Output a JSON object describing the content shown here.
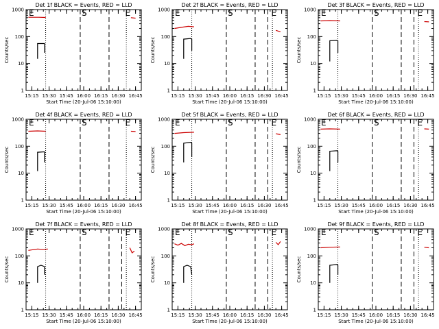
{
  "chart_data": [
    {
      "type": "line",
      "title": "Det 1f BLACK = Events, RED = LLD",
      "ylabel": "Counts/sec",
      "xlabel": "Start Time (20-Jul-06 15:10:00)",
      "x_tick_labels": [
        "15:15",
        "15:30",
        "15:45",
        "16:00",
        "16:15",
        "16:30",
        "16:45"
      ],
      "y_tick_labels": [
        "1",
        "10",
        "100",
        "1000"
      ],
      "xlim": [
        "15:10",
        "16:50"
      ],
      "ylim": [
        1,
        1000
      ],
      "y_scale": "log",
      "markers": [
        "E",
        "S",
        "E"
      ],
      "series": [
        {
          "color": "#cc0000",
          "segments": [
            {
              "x": [
                "15:12",
                "15:21",
                "15:27"
              ],
              "y": [
                520,
                520,
                510
              ]
            },
            {
              "x": [
                "16:41",
                "16:45"
              ],
              "y": [
                500,
                480
              ]
            }
          ]
        },
        {
          "color": "#000000",
          "segments": [
            {
              "x": [
                "15:20",
                "15:20",
                "15:26",
                "15:26",
                "15:26"
              ],
              "y": [
                15,
                55,
                55,
                50,
                25
              ]
            }
          ]
        }
      ],
      "vlines_dotted": [
        "15:27",
        "16:37"
      ],
      "vlines_dashed": [
        "15:57",
        "16:22"
      ]
    },
    {
      "type": "line",
      "title": "Det 2f BLACK = Events, RED = LLD",
      "ylabel": "Counts/sec",
      "xlabel": "Start Time (20-Jul-06 15:10:00)",
      "x_tick_labels": [
        "15:15",
        "15:30",
        "15:45",
        "16:00",
        "16:15",
        "16:30",
        "16:45"
      ],
      "y_tick_labels": [
        "1",
        "10",
        "100",
        "1000"
      ],
      "xlim": [
        "15:10",
        "16:50"
      ],
      "ylim": [
        1,
        1000
      ],
      "y_scale": "log",
      "markers": [
        "E",
        "S",
        "E"
      ],
      "series": [
        {
          "color": "#cc0000",
          "segments": [
            {
              "x": [
                "15:12",
                "15:18",
                "15:24",
                "15:29"
              ],
              "y": [
                200,
                220,
                240,
                230
              ]
            },
            {
              "x": [
                "16:40",
                "16:44"
              ],
              "y": [
                170,
                150
              ]
            }
          ]
        },
        {
          "color": "#000000",
          "segments": [
            {
              "x": [
                "15:20",
                "15:20",
                "15:26",
                "15:27",
                "15:27"
              ],
              "y": [
                15,
                80,
                85,
                80,
                30
              ]
            }
          ]
        }
      ],
      "vlines_dotted": [
        "15:27",
        "16:37"
      ],
      "vlines_dashed": [
        "15:57",
        "16:22",
        "16:33"
      ]
    },
    {
      "type": "line",
      "title": "Det 3f BLACK = Events, RED = LLD",
      "ylabel": "Counts/sec",
      "xlabel": "Start Time (20-Jul-06 15:10:00)",
      "x_tick_labels": [
        "15:15",
        "15:30",
        "15:45",
        "16:00",
        "16:15",
        "16:30",
        "16:45"
      ],
      "y_tick_labels": [
        "1",
        "10",
        "100",
        "1000"
      ],
      "xlim": [
        "15:10",
        "16:50"
      ],
      "ylim": [
        1,
        1000
      ],
      "y_scale": "log",
      "markers": [
        "E",
        "S",
        "E"
      ],
      "series": [
        {
          "color": "#cc0000",
          "segments": [
            {
              "x": [
                "15:12",
                "15:20",
                "15:29"
              ],
              "y": [
                380,
                390,
                380
              ]
            },
            {
              "x": [
                "16:42",
                "16:46"
              ],
              "y": [
                360,
                350
              ]
            }
          ]
        },
        {
          "color": "#000000",
          "segments": [
            {
              "x": [
                "15:20",
                "15:20",
                "15:26",
                "15:27",
                "15:27"
              ],
              "y": [
                12,
                70,
                72,
                70,
                25
              ]
            }
          ]
        }
      ],
      "vlines_dotted": [
        "15:27",
        "16:37"
      ],
      "vlines_dashed": [
        "15:57",
        "16:22",
        "16:33"
      ]
    },
    {
      "type": "line",
      "title": "Det 4f BLACK = Events, RED = LLD",
      "ylabel": "Counts/sec",
      "xlabel": "Start Time (20-Jul-06 15:10:00)",
      "x_tick_labels": [
        "15:15",
        "15:30",
        "15:45",
        "16:00",
        "16:15",
        "16:30",
        "16:45"
      ],
      "y_tick_labels": [
        "1",
        "10",
        "100",
        "1000"
      ],
      "xlim": [
        "15:10",
        "16:50"
      ],
      "ylim": [
        1,
        1000
      ],
      "y_scale": "log",
      "markers": [
        "E",
        "S",
        "E"
      ],
      "series": [
        {
          "color": "#cc0000",
          "segments": [
            {
              "x": [
                "15:12",
                "15:20",
                "15:27"
              ],
              "y": [
                360,
                370,
                360
              ]
            },
            {
              "x": [
                "16:41",
                "16:45"
              ],
              "y": [
                360,
                350
              ]
            }
          ]
        },
        {
          "color": "#000000",
          "segments": [
            {
              "x": [
                "15:20",
                "15:20",
                "15:26",
                "15:26",
                "15:26"
              ],
              "y": [
                12,
                60,
                62,
                60,
                25
              ]
            }
          ]
        }
      ],
      "vlines_dotted": [
        "15:27",
        "16:37"
      ],
      "vlines_dashed": [
        "15:57",
        "16:22"
      ]
    },
    {
      "type": "line",
      "title": "Det 5f BLACK = Events, RED = LLD",
      "ylabel": "Counts/sec",
      "xlabel": "Start Time (20-Jul-06 15:10:00)",
      "x_tick_labels": [
        "15:15",
        "15:30",
        "15:45",
        "16:00",
        "16:15",
        "16:30",
        "16:45"
      ],
      "y_tick_labels": [
        "1",
        "10",
        "100",
        "1000"
      ],
      "xlim": [
        "15:10",
        "16:50"
      ],
      "ylim": [
        1,
        1000
      ],
      "y_scale": "log",
      "markers": [
        "E",
        "S",
        "E"
      ],
      "series": [
        {
          "color": "#cc0000",
          "segments": [
            {
              "x": [
                "15:12",
                "15:20",
                "15:29"
              ],
              "y": [
                300,
                320,
                330
              ]
            },
            {
              "x": [
                "16:40",
                "16:44"
              ],
              "y": [
                290,
                270
              ]
            }
          ]
        },
        {
          "color": "#000000",
          "segments": [
            {
              "x": [
                "15:20",
                "15:20",
                "15:26",
                "15:27",
                "15:27"
              ],
              "y": [
                25,
                130,
                140,
                130,
                40
              ]
            }
          ]
        }
      ],
      "vlines_dotted": [
        "15:27",
        "16:37"
      ],
      "vlines_dashed": [
        "15:57",
        "16:22",
        "16:33"
      ]
    },
    {
      "type": "line",
      "title": "Det 6f BLACK = Events, RED = LLD",
      "ylabel": "Counts/sec",
      "xlabel": "Start Time (20-Jul-06 15:10:00)",
      "x_tick_labels": [
        "15:15",
        "15:30",
        "15:45",
        "16:00",
        "16:15",
        "16:30",
        "16:45"
      ],
      "y_tick_labels": [
        "1",
        "10",
        "100",
        "1000"
      ],
      "xlim": [
        "15:10",
        "16:50"
      ],
      "ylim": [
        1,
        1000
      ],
      "y_scale": "log",
      "markers": [
        "E",
        "S",
        "E"
      ],
      "series": [
        {
          "color": "#cc0000",
          "segments": [
            {
              "x": [
                "15:12",
                "15:20",
                "15:29"
              ],
              "y": [
                430,
                440,
                430
              ]
            },
            {
              "x": [
                "16:42",
                "16:46"
              ],
              "y": [
                440,
                430
              ]
            }
          ]
        },
        {
          "color": "#000000",
          "segments": [
            {
              "x": [
                "15:20",
                "15:20",
                "15:26",
                "15:27",
                "15:27"
              ],
              "y": [
                12,
                65,
                68,
                65,
                25
              ]
            }
          ]
        }
      ],
      "vlines_dotted": [
        "15:27",
        "16:37"
      ],
      "vlines_dashed": [
        "15:57",
        "16:22",
        "16:33"
      ]
    },
    {
      "type": "line",
      "title": "Det 7f BLACK = Events, RED = LLD",
      "ylabel": "Counts/sec",
      "xlabel": "Start Time (20-Jul-06 15:10:00)",
      "x_tick_labels": [
        "15:15",
        "15:30",
        "15:45",
        "16:00",
        "16:15",
        "16:30",
        "16:45"
      ],
      "y_tick_labels": [
        "1",
        "10",
        "100",
        "1000"
      ],
      "xlim": [
        "15:10",
        "16:50"
      ],
      "ylim": [
        1,
        1000
      ],
      "y_scale": "log",
      "markers": [
        "E",
        "S",
        "E"
      ],
      "series": [
        {
          "color": "#cc0000",
          "segments": [
            {
              "x": [
                "15:12",
                "15:16",
                "15:20",
                "15:24",
                "15:29"
              ],
              "y": [
                160,
                170,
                180,
                175,
                180
              ]
            },
            {
              "x": [
                "16:40",
                "16:42",
                "16:44"
              ],
              "y": [
                200,
                130,
                150
              ]
            }
          ]
        },
        {
          "color": "#000000",
          "segments": [
            {
              "x": [
                "15:20",
                "15:20",
                "15:23",
                "15:26",
                "15:26"
              ],
              "y": [
                10,
                40,
                45,
                40,
                20
              ]
            }
          ]
        }
      ],
      "vlines_dotted": [
        "15:27",
        "16:37"
      ],
      "vlines_dashed": [
        "15:57",
        "16:22",
        "16:33"
      ]
    },
    {
      "type": "line",
      "title": "Det 8f BLACK = Events, RED = LLD",
      "ylabel": "Counts/sec",
      "xlabel": "Start Time (20-Jul-06 15:10:00)",
      "x_tick_labels": [
        "15:15",
        "15:30",
        "15:45",
        "16:00",
        "16:15",
        "16:30",
        "16:45"
      ],
      "y_tick_labels": [
        "1",
        "10",
        "100",
        "1000"
      ],
      "xlim": [
        "15:10",
        "16:50"
      ],
      "ylim": [
        1,
        1000
      ],
      "y_scale": "log",
      "markers": [
        "E",
        "S",
        "E"
      ],
      "series": [
        {
          "color": "#cc0000",
          "segments": [
            {
              "x": [
                "15:12",
                "15:15",
                "15:18",
                "15:21",
                "15:24",
                "15:27",
                "15:29"
              ],
              "y": [
                280,
                250,
                290,
                240,
                270,
                260,
                280
              ]
            },
            {
              "x": [
                "16:40",
                "16:42",
                "16:44"
              ],
              "y": [
                320,
                260,
                340
              ]
            }
          ]
        },
        {
          "color": "#000000",
          "segments": [
            {
              "x": [
                "15:20",
                "15:20",
                "15:23",
                "15:26",
                "15:27"
              ],
              "y": [
                10,
                40,
                45,
                40,
                20
              ]
            }
          ]
        }
      ],
      "vlines_dotted": [
        "15:27",
        "16:37"
      ],
      "vlines_dashed": [
        "15:57",
        "16:22",
        "16:33"
      ]
    },
    {
      "type": "line",
      "title": "Det 9f BLACK = Events, RED = LLD",
      "ylabel": "Counts/sec",
      "xlabel": "Start Time (20-Jul-06 15:10:00)",
      "x_tick_labels": [
        "15:15",
        "15:30",
        "15:45",
        "16:00",
        "16:15",
        "16:30",
        "16:45"
      ],
      "y_tick_labels": [
        "1",
        "10",
        "100",
        "1000"
      ],
      "xlim": [
        "15:10",
        "16:50"
      ],
      "ylim": [
        1,
        1000
      ],
      "y_scale": "log",
      "markers": [
        "E",
        "S",
        "E"
      ],
      "series": [
        {
          "color": "#cc0000",
          "segments": [
            {
              "x": [
                "15:12",
                "15:20",
                "15:29"
              ],
              "y": [
                200,
                210,
                215
              ]
            },
            {
              "x": [
                "16:42",
                "16:46"
              ],
              "y": [
                210,
                200
              ]
            }
          ]
        },
        {
          "color": "#000000",
          "segments": [
            {
              "x": [
                "15:20",
                "15:20",
                "15:26",
                "15:27",
                "15:27"
              ],
              "y": [
                10,
                45,
                48,
                45,
                20
              ]
            }
          ]
        }
      ],
      "vlines_dotted": [
        "15:27",
        "16:37"
      ],
      "vlines_dashed": [
        "15:57",
        "16:22",
        "16:33"
      ]
    }
  ]
}
